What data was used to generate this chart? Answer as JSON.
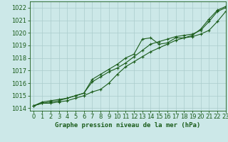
{
  "title": "Graphe pression niveau de la mer (hPa)",
  "xlim": [
    -0.5,
    23
  ],
  "ylim": [
    1013.8,
    1022.5
  ],
  "yticks": [
    1014,
    1015,
    1016,
    1017,
    1018,
    1019,
    1020,
    1021,
    1022
  ],
  "xticks": [
    0,
    1,
    2,
    3,
    4,
    5,
    6,
    7,
    8,
    9,
    10,
    11,
    12,
    13,
    14,
    15,
    16,
    17,
    18,
    19,
    20,
    21,
    22,
    23
  ],
  "bg_color": "#cce8e8",
  "grid_color": "#aacccc",
  "line_color": "#1a5c1a",
  "series1": [
    1014.2,
    1014.5,
    1014.6,
    1014.7,
    1014.8,
    1015.0,
    1015.2,
    1016.3,
    1016.7,
    1017.1,
    1017.5,
    1018.0,
    1018.3,
    1019.5,
    1019.6,
    1019.1,
    1019.2,
    1019.6,
    1019.6,
    1019.8,
    1020.3,
    1021.1,
    1021.8,
    1022.1
  ],
  "series2": [
    1014.2,
    1014.4,
    1014.5,
    1014.6,
    1014.8,
    1015.0,
    1015.2,
    1016.1,
    1016.5,
    1016.9,
    1017.2,
    1017.6,
    1018.1,
    1018.6,
    1019.1,
    1019.3,
    1019.5,
    1019.7,
    1019.8,
    1019.9,
    1020.2,
    1020.9,
    1021.7,
    1022.0
  ],
  "series3": [
    1014.2,
    1014.4,
    1014.4,
    1014.5,
    1014.6,
    1014.8,
    1015.0,
    1015.3,
    1015.5,
    1016.0,
    1016.7,
    1017.3,
    1017.7,
    1018.1,
    1018.5,
    1018.8,
    1019.1,
    1019.4,
    1019.6,
    1019.7,
    1019.9,
    1020.2,
    1020.9,
    1021.7
  ],
  "tick_fontsize": 6,
  "xlabel_fontsize": 6.5
}
